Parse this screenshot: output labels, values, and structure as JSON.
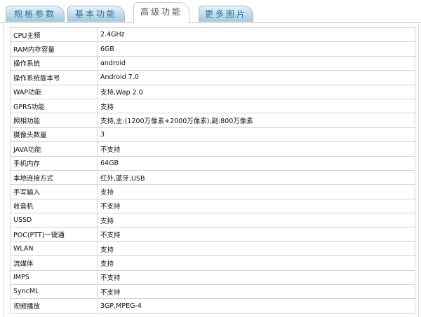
{
  "tabs": [
    {
      "label": "规格参数"
    },
    {
      "label": "基本功能"
    },
    {
      "label": "高级功能",
      "active": true
    },
    {
      "label": "更多图片"
    }
  ],
  "rows": [
    {
      "k": "CPU主频",
      "v": "2.4GHz"
    },
    {
      "k": "RAM内存容量",
      "v": "6GB"
    },
    {
      "k": "操作系统",
      "v": "android"
    },
    {
      "k": "操作系统版本号",
      "v": "Android 7.0"
    },
    {
      "k": "WAP功能",
      "v": "支持,Wap 2.0"
    },
    {
      "k": "GPRS功能",
      "v": "支持"
    },
    {
      "k": "照相功能",
      "v": "支持,主:(1200万像素+2000万像素),副:800万像素"
    },
    {
      "k": "摄像头数量",
      "v": "3"
    },
    {
      "k": "JAVA功能",
      "v": "不支持"
    },
    {
      "k": "手机内存",
      "v": "64GB"
    },
    {
      "k": "本地连接方式",
      "v": "红外,蓝牙,USB"
    },
    {
      "k": "手写输入",
      "v": "支持"
    },
    {
      "k": "收音机",
      "v": "不支持"
    },
    {
      "k": "USSD",
      "v": "支持"
    },
    {
      "k": "POC(PTT)一键通",
      "v": "不支持"
    },
    {
      "k": "WLAN",
      "v": "支持"
    },
    {
      "k": "流媒体",
      "v": "支持"
    },
    {
      "k": "IMPS",
      "v": "不支持"
    },
    {
      "k": "SyncML",
      "v": "不支持"
    },
    {
      "k": "视频播放",
      "v": "3GP,MPEG-4"
    }
  ]
}
